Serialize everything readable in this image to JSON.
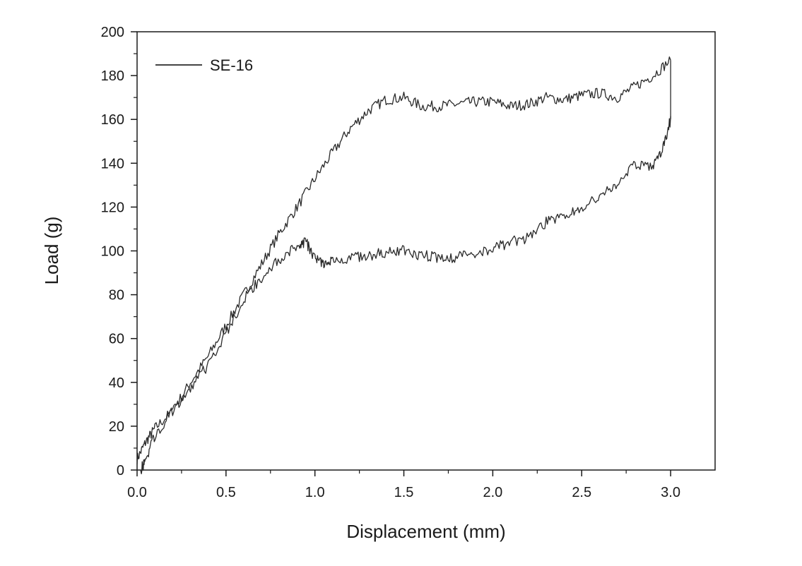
{
  "chart_data": {
    "type": "line",
    "title": "",
    "xlabel": "Displacement (mm)",
    "ylabel": "Load (g)",
    "xlim": [
      0.0,
      3.25
    ],
    "ylim": [
      0,
      200
    ],
    "x_ticks": [
      "0.0",
      "0.5",
      "1.0",
      "1.5",
      "2.0",
      "2.5",
      "3.0"
    ],
    "y_ticks": [
      "0",
      "20",
      "40",
      "60",
      "80",
      "100",
      "120",
      "140",
      "160",
      "180",
      "200"
    ],
    "grid": false,
    "legend_position": "top-left",
    "line_color": "#2a2a2a",
    "series": [
      {
        "name": "SE-16",
        "loading_x": [
          0.0,
          0.05,
          0.1,
          0.2,
          0.3,
          0.4,
          0.5,
          0.6,
          0.7,
          0.8,
          0.9,
          1.0,
          1.1,
          1.2,
          1.3,
          1.4,
          1.5,
          1.6,
          1.7,
          1.8,
          1.9,
          2.0,
          2.1,
          2.2,
          2.3,
          2.4,
          2.5,
          2.6,
          2.7,
          2.8,
          2.9,
          3.0
        ],
        "loading_y": [
          5,
          13,
          19,
          27,
          40,
          52,
          66,
          80,
          94,
          108,
          120,
          133,
          145,
          156,
          164,
          169,
          170,
          166,
          166,
          167,
          168,
          168,
          166,
          167,
          170,
          169,
          171,
          172,
          170,
          175,
          180,
          187
        ],
        "unloading_x": [
          3.0,
          2.95,
          2.9,
          2.8,
          2.7,
          2.6,
          2.5,
          2.4,
          2.3,
          2.2,
          2.1,
          2.0,
          1.9,
          1.8,
          1.7,
          1.6,
          1.5,
          1.4,
          1.3,
          1.2,
          1.1,
          1.05,
          1.0,
          0.95,
          0.9,
          0.8,
          0.7,
          0.6,
          0.5,
          0.4,
          0.3,
          0.2,
          0.1,
          0.05,
          0.02
        ],
        "unloading_y": [
          160,
          145,
          138,
          140,
          130,
          125,
          120,
          116,
          113,
          106,
          104,
          101,
          99,
          97,
          97,
          98,
          100,
          99,
          98,
          97,
          96,
          93,
          97,
          104,
          103,
          96,
          88,
          78,
          62,
          48,
          38,
          27,
          16,
          5,
          0
        ]
      }
    ]
  }
}
